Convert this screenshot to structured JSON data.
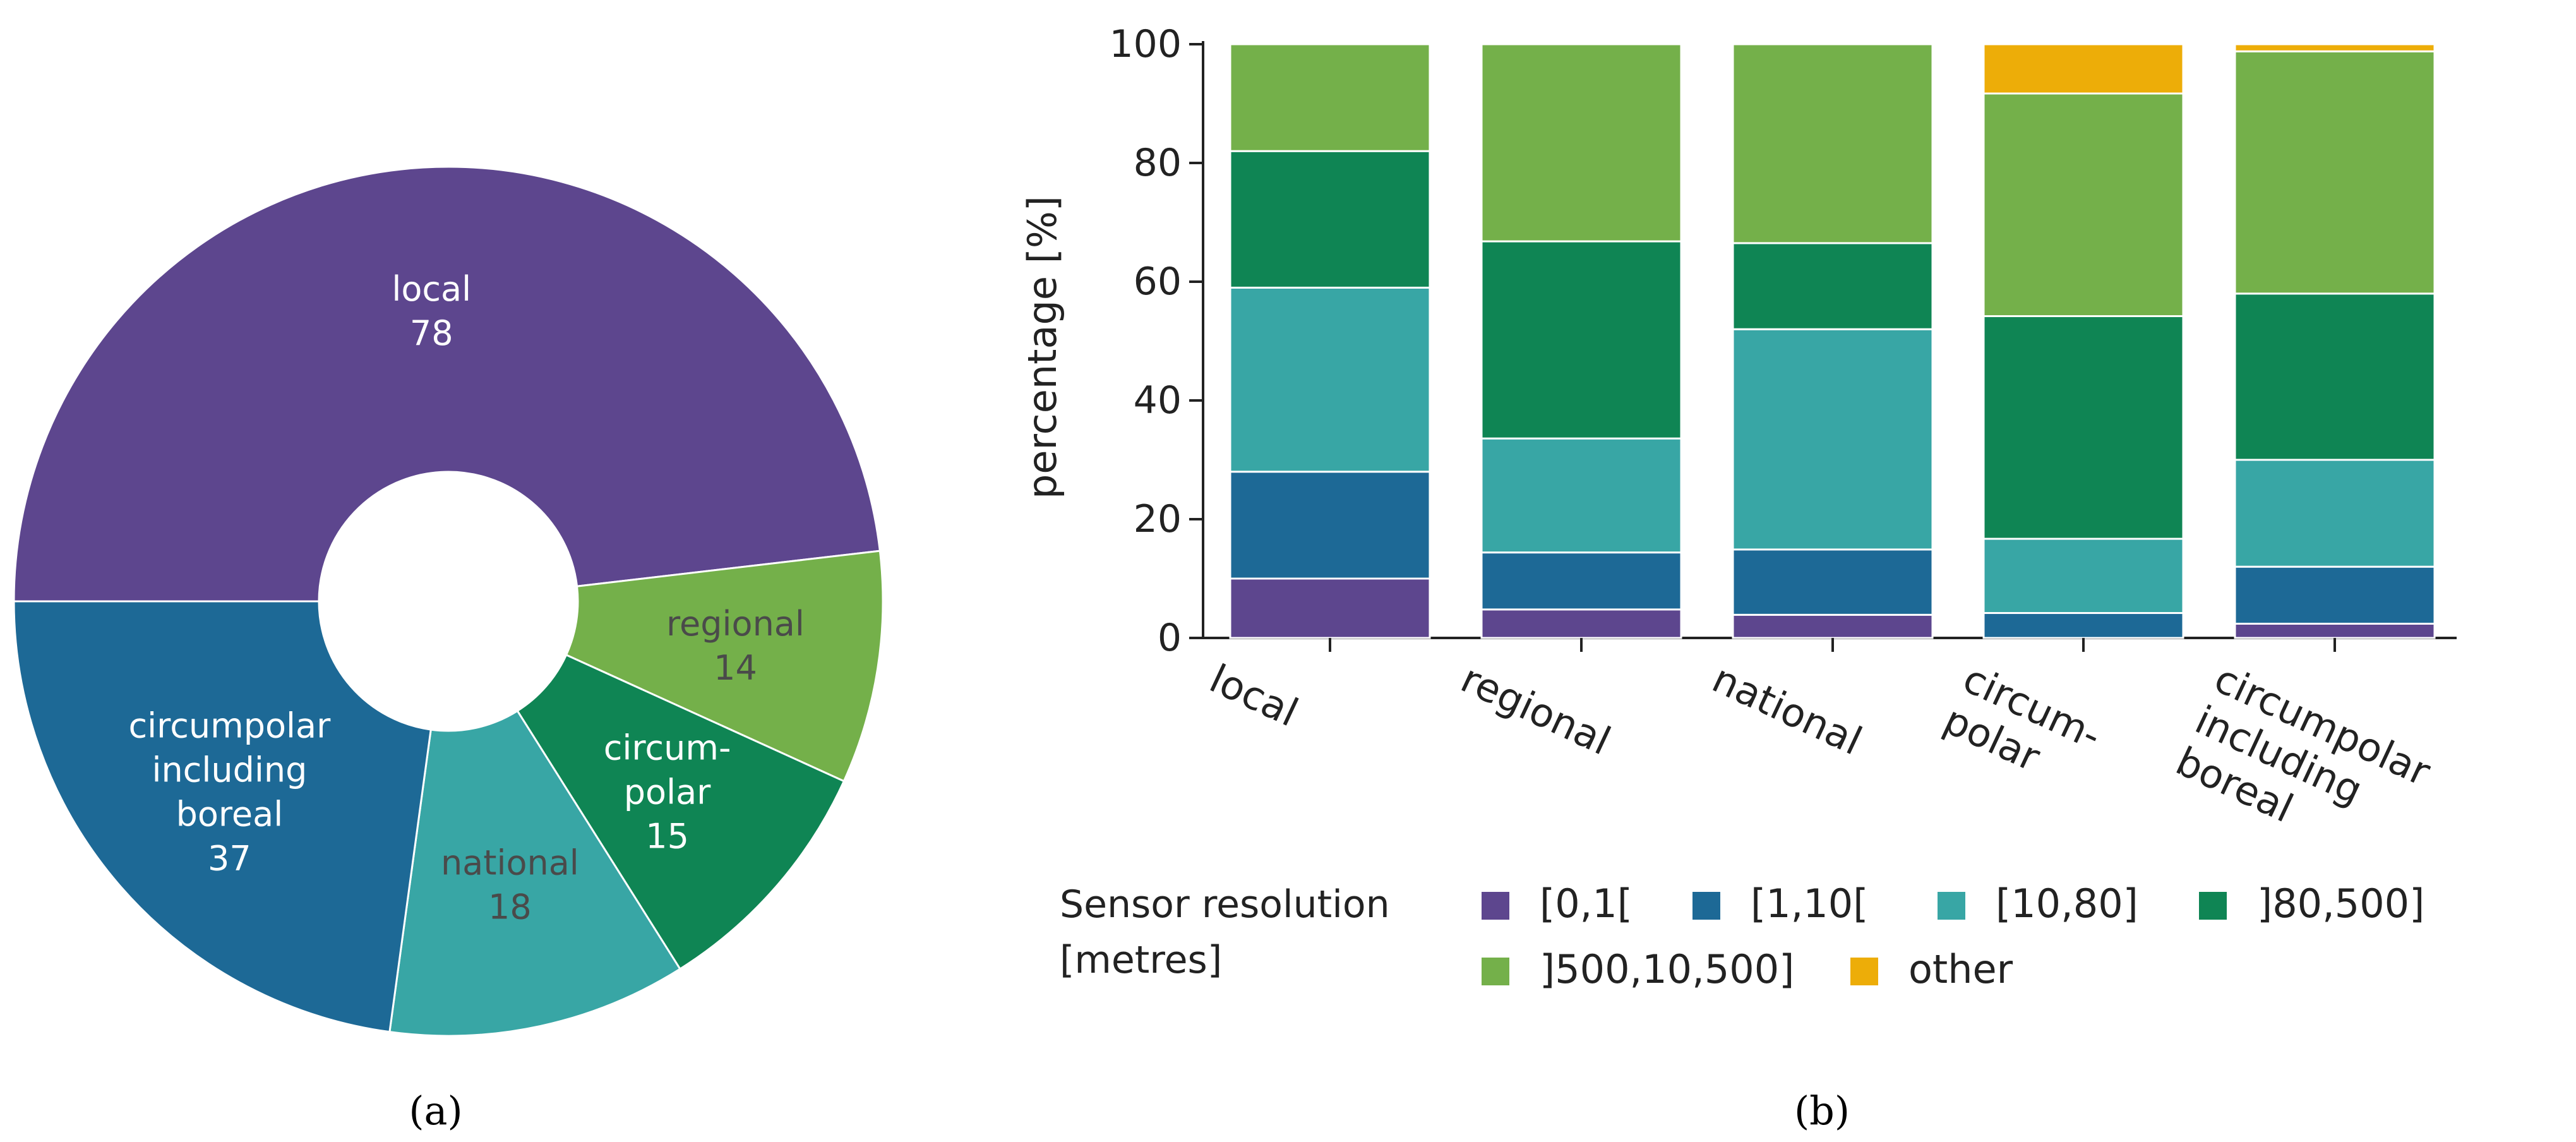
{
  "colors": {
    "local": "#5D468E",
    "regional": "#74B04A",
    "national": "#38A6A5",
    "circumpolar": "#0F8554",
    "circumpolar_including_boreal": "#1D6996",
    "res_0_1": "#5D468E",
    "res_1_10": "#1D6996",
    "res_10_80": "#38A6A5",
    "res_80_500": "#0F8554",
    "res_500_10500": "#74B04A",
    "res_other": "#EDAD08"
  },
  "panel_a_label": "(a)",
  "panel_b_label": "(b)",
  "chart_data": [
    {
      "type": "pie",
      "variant": "donut",
      "slices": [
        {
          "label_lines": [
            "local"
          ],
          "value": 78,
          "color_key": "local",
          "text_color": "#ffffff"
        },
        {
          "label_lines": [
            "regional"
          ],
          "value": 14,
          "color_key": "regional",
          "text_color": "#4a4a4a"
        },
        {
          "label_lines": [
            "circum-",
            "polar"
          ],
          "value": 15,
          "color_key": "circumpolar",
          "text_color": "#ffffff"
        },
        {
          "label_lines": [
            "national"
          ],
          "value": 18,
          "color_key": "national",
          "text_color": "#4a4a4a"
        },
        {
          "label_lines": [
            "circumpolar",
            "including",
            "boreal"
          ],
          "value": 37,
          "color_key": "circumpolar_including_boreal",
          "text_color": "#ffffff"
        }
      ]
    },
    {
      "type": "bar",
      "stacked": true,
      "categories": [
        [
          "local"
        ],
        [
          "regional"
        ],
        [
          "national"
        ],
        [
          "circum-",
          "polar"
        ],
        [
          "circumpolar",
          "including",
          "boreal"
        ]
      ],
      "ylabel": "percentage [%]",
      "ylim": [
        0,
        100
      ],
      "yticks": [
        0,
        20,
        40,
        60,
        80,
        100
      ],
      "series": [
        {
          "name": "[0,1[",
          "color_key": "res_0_1",
          "values": [
            10,
            4.8,
            3.9,
            0,
            2.4
          ]
        },
        {
          "name": "[1,10[",
          "color_key": "res_1_10",
          "values": [
            18,
            9.6,
            11,
            4.2,
            9.6
          ]
        },
        {
          "name": "[10,80]",
          "color_key": "res_10_80",
          "values": [
            31,
            19.2,
            37.1,
            12.5,
            18
          ]
        },
        {
          "name": "]80,500]",
          "color_key": "res_80_500",
          "values": [
            23,
            33.2,
            14.5,
            37.5,
            28
          ]
        },
        {
          "name": "]500,10,500]",
          "color_key": "res_500_10500",
          "values": [
            18,
            33.2,
            33.5,
            37.5,
            40.8
          ]
        },
        {
          "name": "other",
          "color_key": "res_other",
          "values": [
            0,
            0,
            0,
            8.3,
            1.2
          ]
        }
      ],
      "legend_title_lines": [
        "Sensor resolution",
        "[metres]"
      ],
      "legend_position": "bottom"
    }
  ]
}
